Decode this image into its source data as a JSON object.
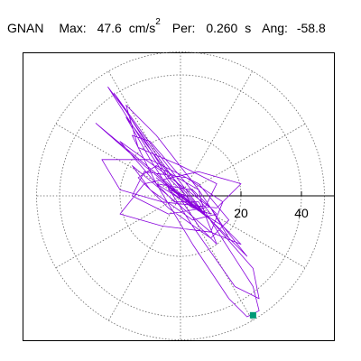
{
  "header": {
    "station": "GNAN",
    "max_label": "Max:",
    "max_value": "47.6",
    "max_unit": "cm/s",
    "max_unit_exp": "2",
    "period_label": "Per:",
    "period_value": "0.260",
    "period_unit": "s",
    "angle_label": "Ang:",
    "angle_value": "-58.8"
  },
  "colors": {
    "trace": "#8800dd",
    "end_marker": "#009977",
    "grid": "#666666",
    "axis": "#000000",
    "frame": "#000000"
  },
  "chart_data": {
    "type": "polar-trace",
    "title": "",
    "xlabel": "",
    "ylabel": "",
    "radial_ticks": [
      20,
      40
    ],
    "grid_rings": [
      20,
      40
    ],
    "spoke_step_degrees": 30,
    "max_radius": 47.6,
    "grid": true,
    "end_point": {
      "x": 24,
      "y": -39.5
    },
    "trace": [
      [
        0,
        0
      ],
      [
        3,
        -2
      ],
      [
        -4,
        3
      ],
      [
        6,
        -5
      ],
      [
        -8,
        6
      ],
      [
        10,
        -8
      ],
      [
        -12,
        10
      ],
      [
        9,
        -7
      ],
      [
        -6,
        5
      ],
      [
        4,
        -3
      ],
      [
        -14,
        22
      ],
      [
        -22,
        34
      ],
      [
        -12,
        20
      ],
      [
        8,
        -6
      ],
      [
        12,
        -16
      ],
      [
        6,
        -10
      ],
      [
        -10,
        14
      ],
      [
        -24,
        36
      ],
      [
        -18,
        28
      ],
      [
        -4,
        6
      ],
      [
        16,
        -14
      ],
      [
        10,
        -4
      ],
      [
        -6,
        8
      ],
      [
        -20,
        18
      ],
      [
        -8,
        4
      ],
      [
        14,
        -10
      ],
      [
        22,
        -20
      ],
      [
        8,
        -6
      ],
      [
        -16,
        14
      ],
      [
        -28,
        24
      ],
      [
        -12,
        10
      ],
      [
        10,
        -8
      ],
      [
        24,
        -24
      ],
      [
        26,
        -34
      ],
      [
        18,
        -30
      ],
      [
        4,
        -10
      ],
      [
        -10,
        12
      ],
      [
        -18,
        26
      ],
      [
        -6,
        10
      ],
      [
        8,
        -6
      ],
      [
        6,
        2
      ],
      [
        -8,
        10
      ],
      [
        -14,
        6
      ],
      [
        -4,
        -4
      ],
      [
        10,
        -14
      ],
      [
        16,
        -8
      ],
      [
        6,
        4
      ],
      [
        -10,
        12
      ],
      [
        -26,
        12
      ],
      [
        -20,
        2
      ],
      [
        -6,
        -2
      ],
      [
        12,
        -4
      ],
      [
        20,
        4
      ],
      [
        6,
        8
      ],
      [
        -12,
        4
      ],
      [
        -20,
        -6
      ],
      [
        -6,
        -10
      ],
      [
        10,
        -12
      ],
      [
        14,
        -2
      ],
      [
        2,
        6
      ],
      [
        -12,
        8
      ],
      [
        -16,
        0
      ],
      [
        -4,
        -6
      ],
      [
        8,
        -4
      ],
      [
        12,
        4
      ],
      [
        0,
        10
      ],
      [
        -14,
        16
      ],
      [
        -18,
        30
      ],
      [
        -8,
        20
      ],
      [
        6,
        2
      ],
      [
        14,
        -10
      ],
      [
        20,
        -16
      ],
      [
        10,
        -12
      ],
      [
        -4,
        0
      ],
      [
        -16,
        10
      ],
      [
        -10,
        2
      ],
      [
        4,
        -8
      ],
      [
        12,
        -6
      ],
      [
        4,
        2
      ],
      [
        -8,
        4
      ],
      [
        -2,
        -2
      ],
      [
        6,
        -2
      ],
      [
        24,
        -30
      ],
      [
        26,
        -38
      ],
      [
        22,
        -40
      ],
      [
        16,
        -34
      ],
      [
        4,
        -16
      ],
      [
        -8,
        4
      ],
      [
        -16,
        20
      ],
      [
        -10,
        18
      ],
      [
        2,
        4
      ],
      [
        10,
        -6
      ],
      [
        4,
        -4
      ],
      [
        -4,
        2
      ],
      [
        2,
        0
      ],
      [
        0,
        0
      ]
    ]
  }
}
